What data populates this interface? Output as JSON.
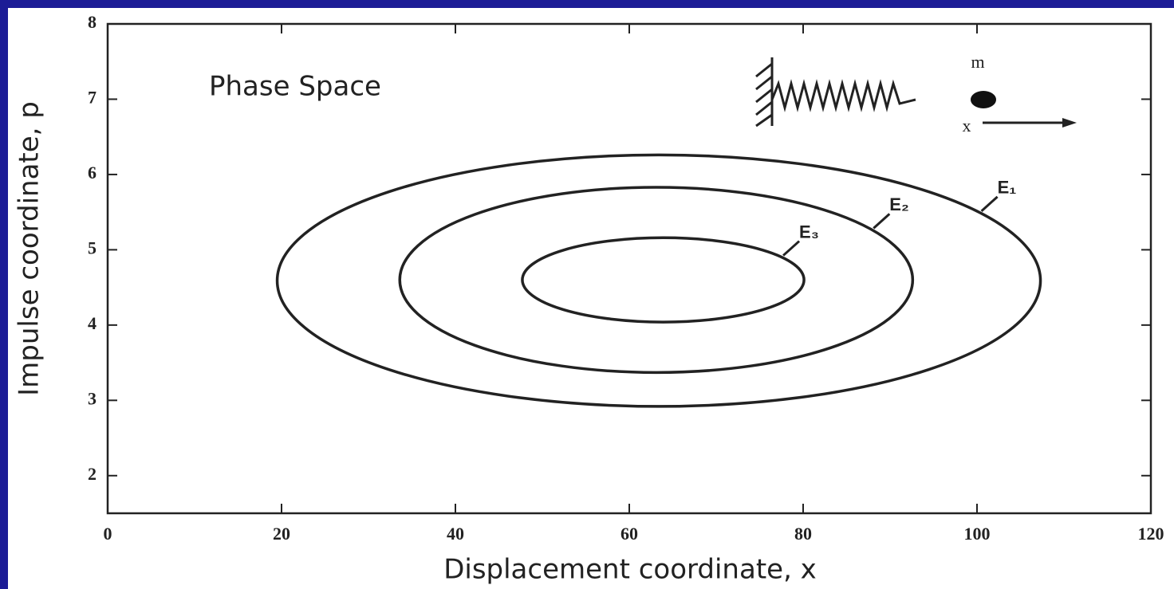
{
  "chart_data": {
    "type": "ellipse",
    "title": "Phase Space",
    "x_label": "Displacement coordinate, x",
    "y_label": "Impulse coordinate, p",
    "xlim": [
      0,
      120
    ],
    "xticks": [
      0,
      20,
      40,
      60,
      80,
      100,
      120
    ],
    "ylim": [
      1.5,
      8
    ],
    "yticks": [
      2,
      3,
      4,
      5,
      6,
      7,
      8
    ],
    "color": "#222222",
    "series": [
      {
        "name": "E₁",
        "cx": 63.4,
        "cy": 4.59,
        "rx": 43.9,
        "ry": 1.67
      },
      {
        "name": "E₂",
        "cx": 63.1,
        "cy": 4.6,
        "rx": 29.5,
        "ry": 1.23
      },
      {
        "name": "E₃",
        "cx": 63.9,
        "cy": 4.6,
        "rx": 16.2,
        "ry": 0.56
      }
    ],
    "inset_labels": [
      "m",
      "x"
    ]
  }
}
